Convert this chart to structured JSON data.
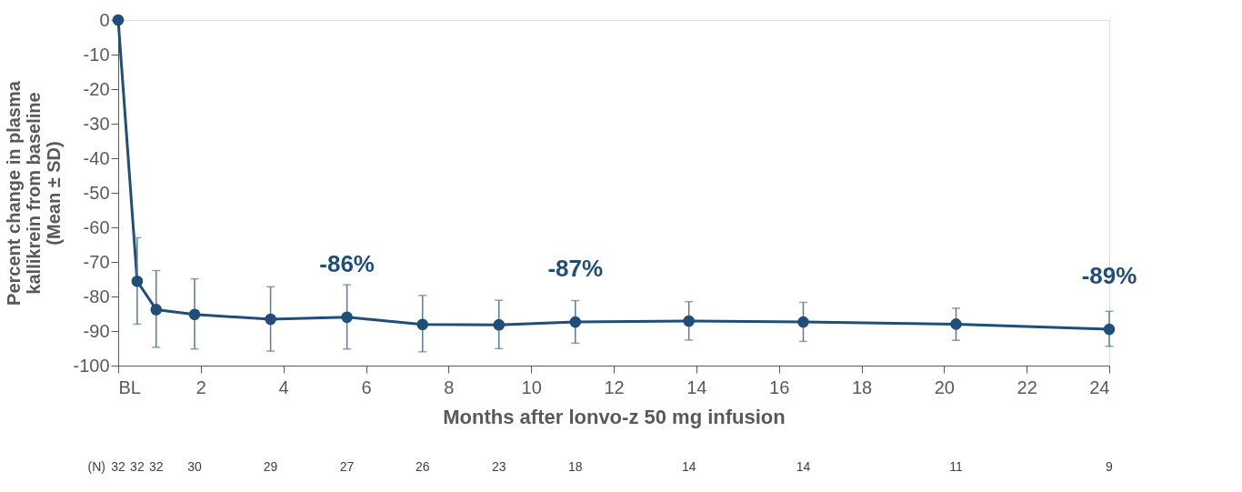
{
  "chart_data": {
    "type": "line",
    "xlabel": "Months after lonvo-z 50 mg infusion",
    "ylabel": "Percent change in plasma\nkallikrein from baseline\n(Mean ± SD)",
    "x": [
      0,
      0.46,
      0.92,
      1.85,
      3.69,
      5.54,
      7.37,
      9.22,
      11.07,
      13.82,
      16.59,
      20.29,
      24
    ],
    "series": [
      {
        "color": "#1f4e79",
        "values": [
          0,
          -75.6,
          -83.8,
          -85.2,
          -86.6,
          -86.0,
          -88.1,
          -88.2,
          -87.4,
          -87.1,
          -87.4,
          -88.0,
          -89.5
        ],
        "errors": [
          null,
          [
            -88.0,
            -63.0
          ],
          [
            -94.7,
            -72.5
          ],
          [
            -95.2,
            -74.9
          ],
          [
            -95.8,
            -77.2
          ],
          [
            -95.2,
            -76.6
          ],
          [
            -96.0,
            -79.7
          ],
          [
            -95.1,
            -81.1
          ],
          [
            -93.5,
            -81.2
          ],
          [
            -92.6,
            -81.5
          ],
          [
            -93.0,
            -81.7
          ],
          [
            -92.7,
            -83.4
          ],
          [
            -94.4,
            -84.3
          ]
        ],
        "value_labels": [
          null,
          null,
          null,
          null,
          null,
          "-86%",
          null,
          null,
          "-87%",
          null,
          null,
          null,
          "-89%"
        ]
      }
    ],
    "xlim": [
      0,
      24
    ],
    "xticks": [
      {
        "value": 0,
        "label": "BL"
      },
      2,
      4,
      6,
      8,
      10,
      12,
      14,
      16,
      18,
      20,
      22,
      24
    ],
    "ylim": [
      -100,
      0
    ],
    "yticks": [
      0,
      -10,
      -20,
      -30,
      -40,
      -50,
      -60,
      -70,
      -80,
      -90,
      -100
    ],
    "grid": false,
    "marker": "circle",
    "line_style": "solid",
    "annotations": [
      "(N)",
      "32",
      "32",
      "32",
      "30",
      "29",
      "27",
      "26",
      "23",
      "18",
      "14",
      "14",
      "11",
      "9"
    ]
  }
}
